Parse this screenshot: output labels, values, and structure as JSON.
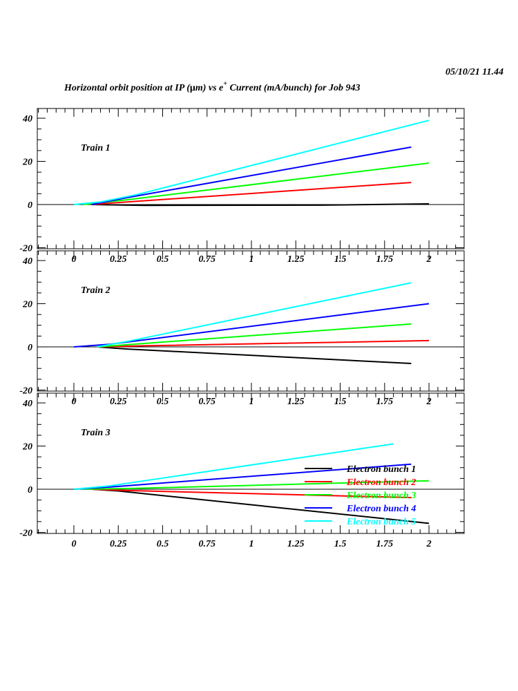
{
  "header": {
    "timestamp": "05/10/21  11.44",
    "title_pre": "Horizontal orbit position at IP (",
    "title_mu": "μ",
    "title_mid": "m) vs e",
    "title_sup": "+",
    "title_post": " Current (mA/bunch) for Job 943"
  },
  "chart_data": [
    {
      "type": "line",
      "panel_label": "Train 1",
      "xlim": [
        -0.206,
        2.198
      ],
      "ylim": [
        -20.5,
        44.5
      ],
      "xticks": [
        "0",
        "0.25",
        "0.5",
        "0.75",
        "1",
        "1.25",
        "1.5",
        "1.75",
        "2"
      ],
      "yticks": [
        "-20",
        "0",
        "20",
        "40"
      ],
      "series": [
        {
          "name": "Electron bunch 1",
          "color": "#000000",
          "points": [
            [
              0.1,
              0
            ],
            [
              0.4,
              -0.4
            ],
            [
              1.4,
              -0.3
            ],
            [
              2,
              0.3
            ]
          ]
        },
        {
          "name": "Electron bunch 2",
          "color": "#ff0000",
          "points": [
            [
              0.1,
              0
            ],
            [
              0.3,
              1.2
            ],
            [
              1.9,
              10.2
            ]
          ]
        },
        {
          "name": "Electron bunch 3",
          "color": "#00ff00",
          "points": [
            [
              0.05,
              0
            ],
            [
              0.3,
              2.2
            ],
            [
              2,
              19.2
            ]
          ]
        },
        {
          "name": "Electron bunch 4",
          "color": "#0000ff",
          "points": [
            [
              0.1,
              0
            ],
            [
              0.3,
              3.2
            ],
            [
              1.9,
              26.6
            ]
          ]
        },
        {
          "name": "Electron bunch 5",
          "color": "#00ffff",
          "points": [
            [
              0,
              0
            ],
            [
              0.15,
              1.2
            ],
            [
              0.35,
              4.5
            ],
            [
              2,
              39
            ]
          ]
        }
      ]
    },
    {
      "type": "line",
      "panel_label": "Train 2",
      "xlim": [
        -0.206,
        2.198
      ],
      "ylim": [
        -20.5,
        44.5
      ],
      "xticks": [
        "0",
        "0.25",
        "0.5",
        "0.75",
        "1",
        "1.25",
        "1.5",
        "1.75",
        "2"
      ],
      "yticks": [
        "-20",
        "0",
        "20",
        "40"
      ],
      "series": [
        {
          "name": "Electron bunch 1",
          "color": "#000000",
          "points": [
            [
              0.13,
              0
            ],
            [
              0.3,
              -1
            ],
            [
              1.9,
              -7.7
            ]
          ]
        },
        {
          "name": "Electron bunch 2",
          "color": "#ff0000",
          "points": [
            [
              0.13,
              0
            ],
            [
              0.4,
              0.5
            ],
            [
              2,
              2.9
            ]
          ]
        },
        {
          "name": "Electron bunch 3",
          "color": "#00ff00",
          "points": [
            [
              0.13,
              0
            ],
            [
              0.3,
              1
            ],
            [
              1.9,
              10.6
            ]
          ]
        },
        {
          "name": "Electron bunch 4",
          "color": "#0000ff",
          "points": [
            [
              0,
              0
            ],
            [
              0.2,
              1.2
            ],
            [
              2,
              20
            ]
          ]
        },
        {
          "name": "Electron bunch 5",
          "color": "#00ffff",
          "points": [
            [
              0.13,
              0
            ],
            [
              0.3,
              2.5
            ],
            [
              1.9,
              29.7
            ]
          ]
        }
      ]
    },
    {
      "type": "line",
      "panel_label": "Train 3",
      "xlim": [
        -0.206,
        2.198
      ],
      "ylim": [
        -20.5,
        44.5
      ],
      "xticks": [
        "0",
        "0.25",
        "0.5",
        "0.75",
        "1",
        "1.25",
        "1.5",
        "1.75",
        "2"
      ],
      "yticks": [
        "-20",
        "0",
        "20",
        "40"
      ],
      "legend_position": "bottom-right",
      "series": [
        {
          "name": "Electron bunch 1",
          "color": "#000000",
          "points": [
            [
              0.1,
              0
            ],
            [
              0.25,
              -0.8
            ],
            [
              2,
              -15.8
            ]
          ]
        },
        {
          "name": "Electron bunch 2",
          "color": "#ff0000",
          "points": [
            [
              0.1,
              0
            ],
            [
              0.3,
              -0.6
            ],
            [
              1.9,
              -3.9
            ]
          ]
        },
        {
          "name": "Electron bunch 3",
          "color": "#00ff00",
          "points": [
            [
              0.05,
              0
            ],
            [
              0.3,
              0.3
            ],
            [
              2,
              3.9
            ]
          ]
        },
        {
          "name": "Electron bunch 4",
          "color": "#0000ff",
          "points": [
            [
              0,
              0
            ],
            [
              0.2,
              1
            ],
            [
              1.9,
              11.6
            ]
          ]
        },
        {
          "name": "Electron bunch 5",
          "color": "#00ffff",
          "points": [
            [
              0,
              0
            ],
            [
              0.2,
              1.5
            ],
            [
              1.8,
              21
            ]
          ]
        }
      ]
    }
  ]
}
